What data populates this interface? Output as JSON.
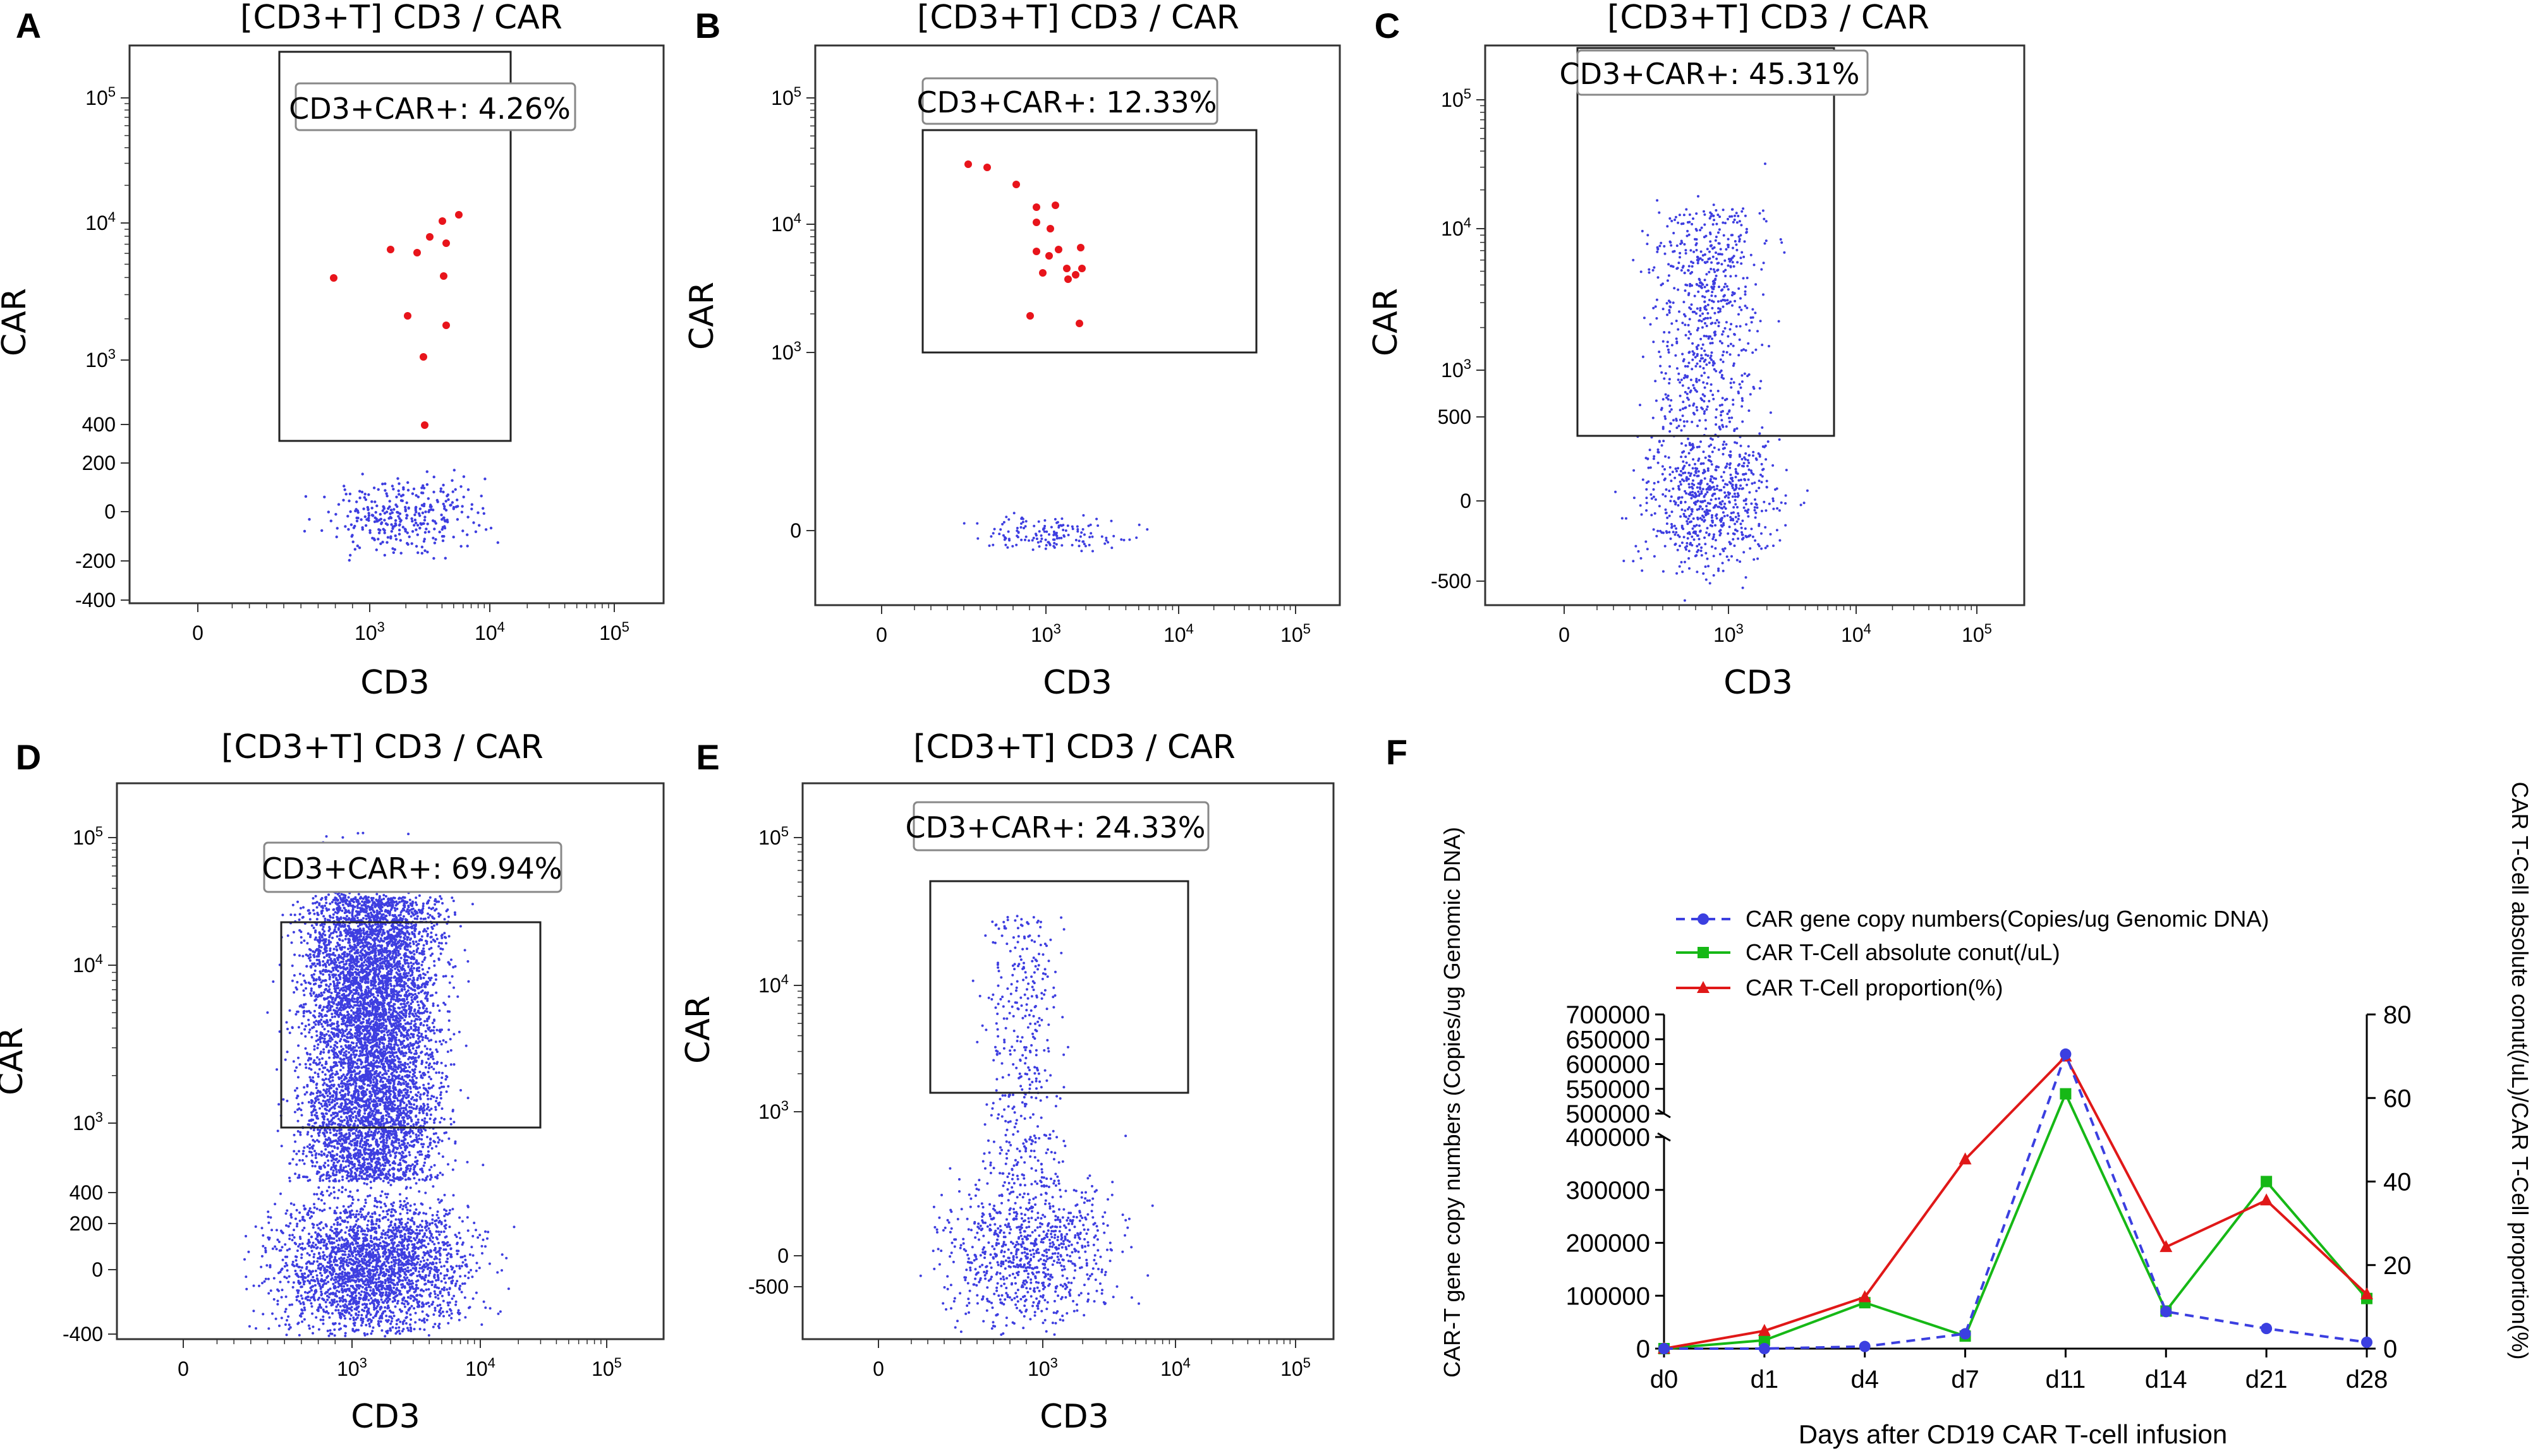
{
  "colors": {
    "event_high": "#e8141b",
    "event_low": "#3e3ee0",
    "series_copy": "#3b3fe0",
    "series_abs": "#16b816",
    "series_prop": "#e01818"
  },
  "flow_panels": [
    {
      "letter": "A",
      "title": "[CD3+T] CD3 / CAR",
      "xlabel": "CD3",
      "ylabel": "CAR",
      "xticks": [
        {
          "m": "0",
          "e": ""
        },
        {
          "m": "10",
          "e": "3"
        },
        {
          "m": "10",
          "e": "4"
        },
        {
          "m": "10",
          "e": "5"
        }
      ],
      "yticks": [
        {
          "m": "10",
          "e": "5"
        },
        {
          "m": "10",
          "e": "4"
        },
        {
          "m": "10",
          "e": "3"
        },
        {
          "m": "400",
          "e": ""
        },
        {
          "m": "200",
          "e": ""
        },
        {
          "m": "0",
          "e": ""
        },
        {
          "m": "-200",
          "e": ""
        },
        {
          "m": "-400",
          "e": ""
        }
      ],
      "gate_label": "CD3+CAR+: 4.26%",
      "events": "sparse red"
    },
    {
      "letter": "B",
      "title": "[CD3+T] CD3 / CAR",
      "xlabel": "CD3",
      "ylabel": "CAR",
      "xticks": [
        {
          "m": "0",
          "e": ""
        },
        {
          "m": "10",
          "e": "3"
        },
        {
          "m": "10",
          "e": "4"
        },
        {
          "m": "10",
          "e": "5"
        }
      ],
      "yticks": [
        {
          "m": "10",
          "e": "5"
        },
        {
          "m": "10",
          "e": "4"
        },
        {
          "m": "10",
          "e": "3"
        },
        {
          "m": "0",
          "e": ""
        }
      ],
      "gate_label": "CD3+CAR+: 12.33%",
      "events": "sparse red"
    },
    {
      "letter": "C",
      "title": "[CD3+T] CD3 / CAR",
      "xlabel": "CD3",
      "ylabel": "CAR",
      "xticks": [
        {
          "m": "0",
          "e": ""
        },
        {
          "m": "10",
          "e": "3"
        },
        {
          "m": "10",
          "e": "4"
        },
        {
          "m": "10",
          "e": "5"
        }
      ],
      "yticks": [
        {
          "m": "10",
          "e": "5"
        },
        {
          "m": "10",
          "e": "4"
        },
        {
          "m": "10",
          "e": "3"
        },
        {
          "m": "500",
          "e": ""
        },
        {
          "m": "0",
          "e": ""
        },
        {
          "m": "-500",
          "e": ""
        }
      ],
      "gate_label": "CD3+CAR+: 45.31%",
      "events": "blue dots"
    },
    {
      "letter": "D",
      "title": "[CD3+T] CD3 / CAR",
      "xlabel": "CD3",
      "ylabel": "CAR",
      "xticks": [
        {
          "m": "0",
          "e": ""
        },
        {
          "m": "10",
          "e": "3"
        },
        {
          "m": "10",
          "e": "4"
        },
        {
          "m": "10",
          "e": "5"
        }
      ],
      "yticks": [
        {
          "m": "10",
          "e": "5"
        },
        {
          "m": "10",
          "e": "4"
        },
        {
          "m": "10",
          "e": "3"
        },
        {
          "m": "400",
          "e": ""
        },
        {
          "m": "200",
          "e": ""
        },
        {
          "m": "0",
          "e": ""
        },
        {
          "m": "-400",
          "e": ""
        }
      ],
      "gate_label": "CD3+CAR+: 69.94%",
      "events": "dense blue"
    },
    {
      "letter": "E",
      "title": "[CD3+T] CD3 / CAR",
      "xlabel": "CD3",
      "ylabel": "CAR",
      "xticks": [
        {
          "m": "0",
          "e": ""
        },
        {
          "m": "10",
          "e": "3"
        },
        {
          "m": "10",
          "e": "4"
        },
        {
          "m": "10",
          "e": "5"
        }
      ],
      "yticks": [
        {
          "m": "10",
          "e": "5"
        },
        {
          "m": "10",
          "e": "4"
        },
        {
          "m": "10",
          "e": "3"
        },
        {
          "m": "0",
          "e": ""
        },
        {
          "m": "-500",
          "e": ""
        }
      ],
      "gate_label": "CD3+CAR+: 24.33%",
      "events": "blue dots"
    }
  ],
  "chart_data": {
    "letter": "F",
    "type": "line",
    "categories": [
      "d0",
      "d1",
      "d4",
      "d7",
      "d11",
      "d14",
      "d21",
      "d28"
    ],
    "xlabel": "Days after CD19 CAR T-cell infusion",
    "ylabel_left": "CAR-T gene copy numbers (Copies/ug Genomic DNA)",
    "ylabel_right": "CAR T-Cell absolute conut(/uL)/CAR T-Cell proportion(%)",
    "y_left_ticks": [
      "700000",
      "650000",
      "600000",
      "550000",
      "500000",
      "400000",
      "300000",
      "200000",
      "100000",
      "0"
    ],
    "y_left_segments": [
      {
        "range": [
          0,
          400000
        ]
      },
      {
        "range": [
          500000,
          700000
        ]
      }
    ],
    "y_right_ticks": [
      "80",
      "60",
      "40",
      "20",
      "0"
    ],
    "ylim_right": [
      0,
      80
    ],
    "series": [
      {
        "name": "CAR gene copy numbers(Copies/ug Genomic DNA)",
        "axis": "left",
        "marker": "circle",
        "dash": true,
        "values": [
          0,
          0,
          4000,
          28000,
          620000,
          70000,
          38000,
          12000
        ]
      },
      {
        "name": "CAR T-Cell absolute conut(/uL)",
        "axis": "right",
        "marker": "square",
        "dash": false,
        "values": [
          0,
          2,
          11,
          3,
          61,
          9,
          40,
          12
        ]
      },
      {
        "name": "CAR T-Cell proportion(%)",
        "axis": "right",
        "marker": "triangle",
        "dash": false,
        "values": [
          0,
          4.26,
          12.33,
          45.31,
          69.94,
          24.33,
          35.5,
          13
        ]
      }
    ]
  }
}
